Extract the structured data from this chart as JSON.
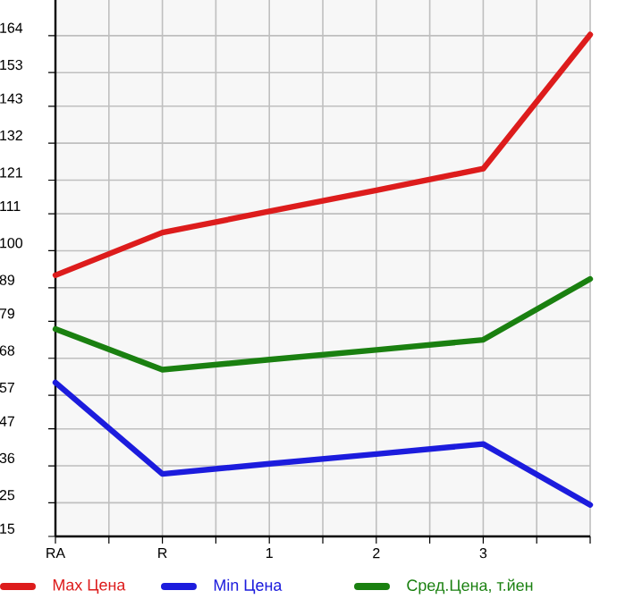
{
  "chart_data": {
    "type": "line",
    "categories": [
      "RA",
      "R",
      "1",
      "2",
      "3",
      null
    ],
    "series": [
      {
        "name": "Max Цена",
        "color": "#dd1c1c",
        "values": [
          92.7,
          105.4,
          111.7,
          118,
          124.4,
          164.3
        ]
      },
      {
        "name": "Min Цена",
        "color": "#1c1cdd",
        "values": [
          60.8,
          33.6,
          36.6,
          39.5,
          42.5,
          24.4
        ]
      },
      {
        "name": "Сред.Цена, т.йен",
        "color": "#1a8010",
        "values": [
          76.7,
          64.6,
          67.6,
          70.5,
          73.5,
          91.6
        ]
      }
    ],
    "ylim": [
      15,
      174.6
    ],
    "yticks": [
      15,
      25,
      36,
      47,
      57,
      68,
      79,
      89,
      100,
      111,
      121,
      132,
      143,
      153,
      164
    ],
    "grid": true,
    "legend": "bottom",
    "marker": "none",
    "line_style": "solid"
  }
}
